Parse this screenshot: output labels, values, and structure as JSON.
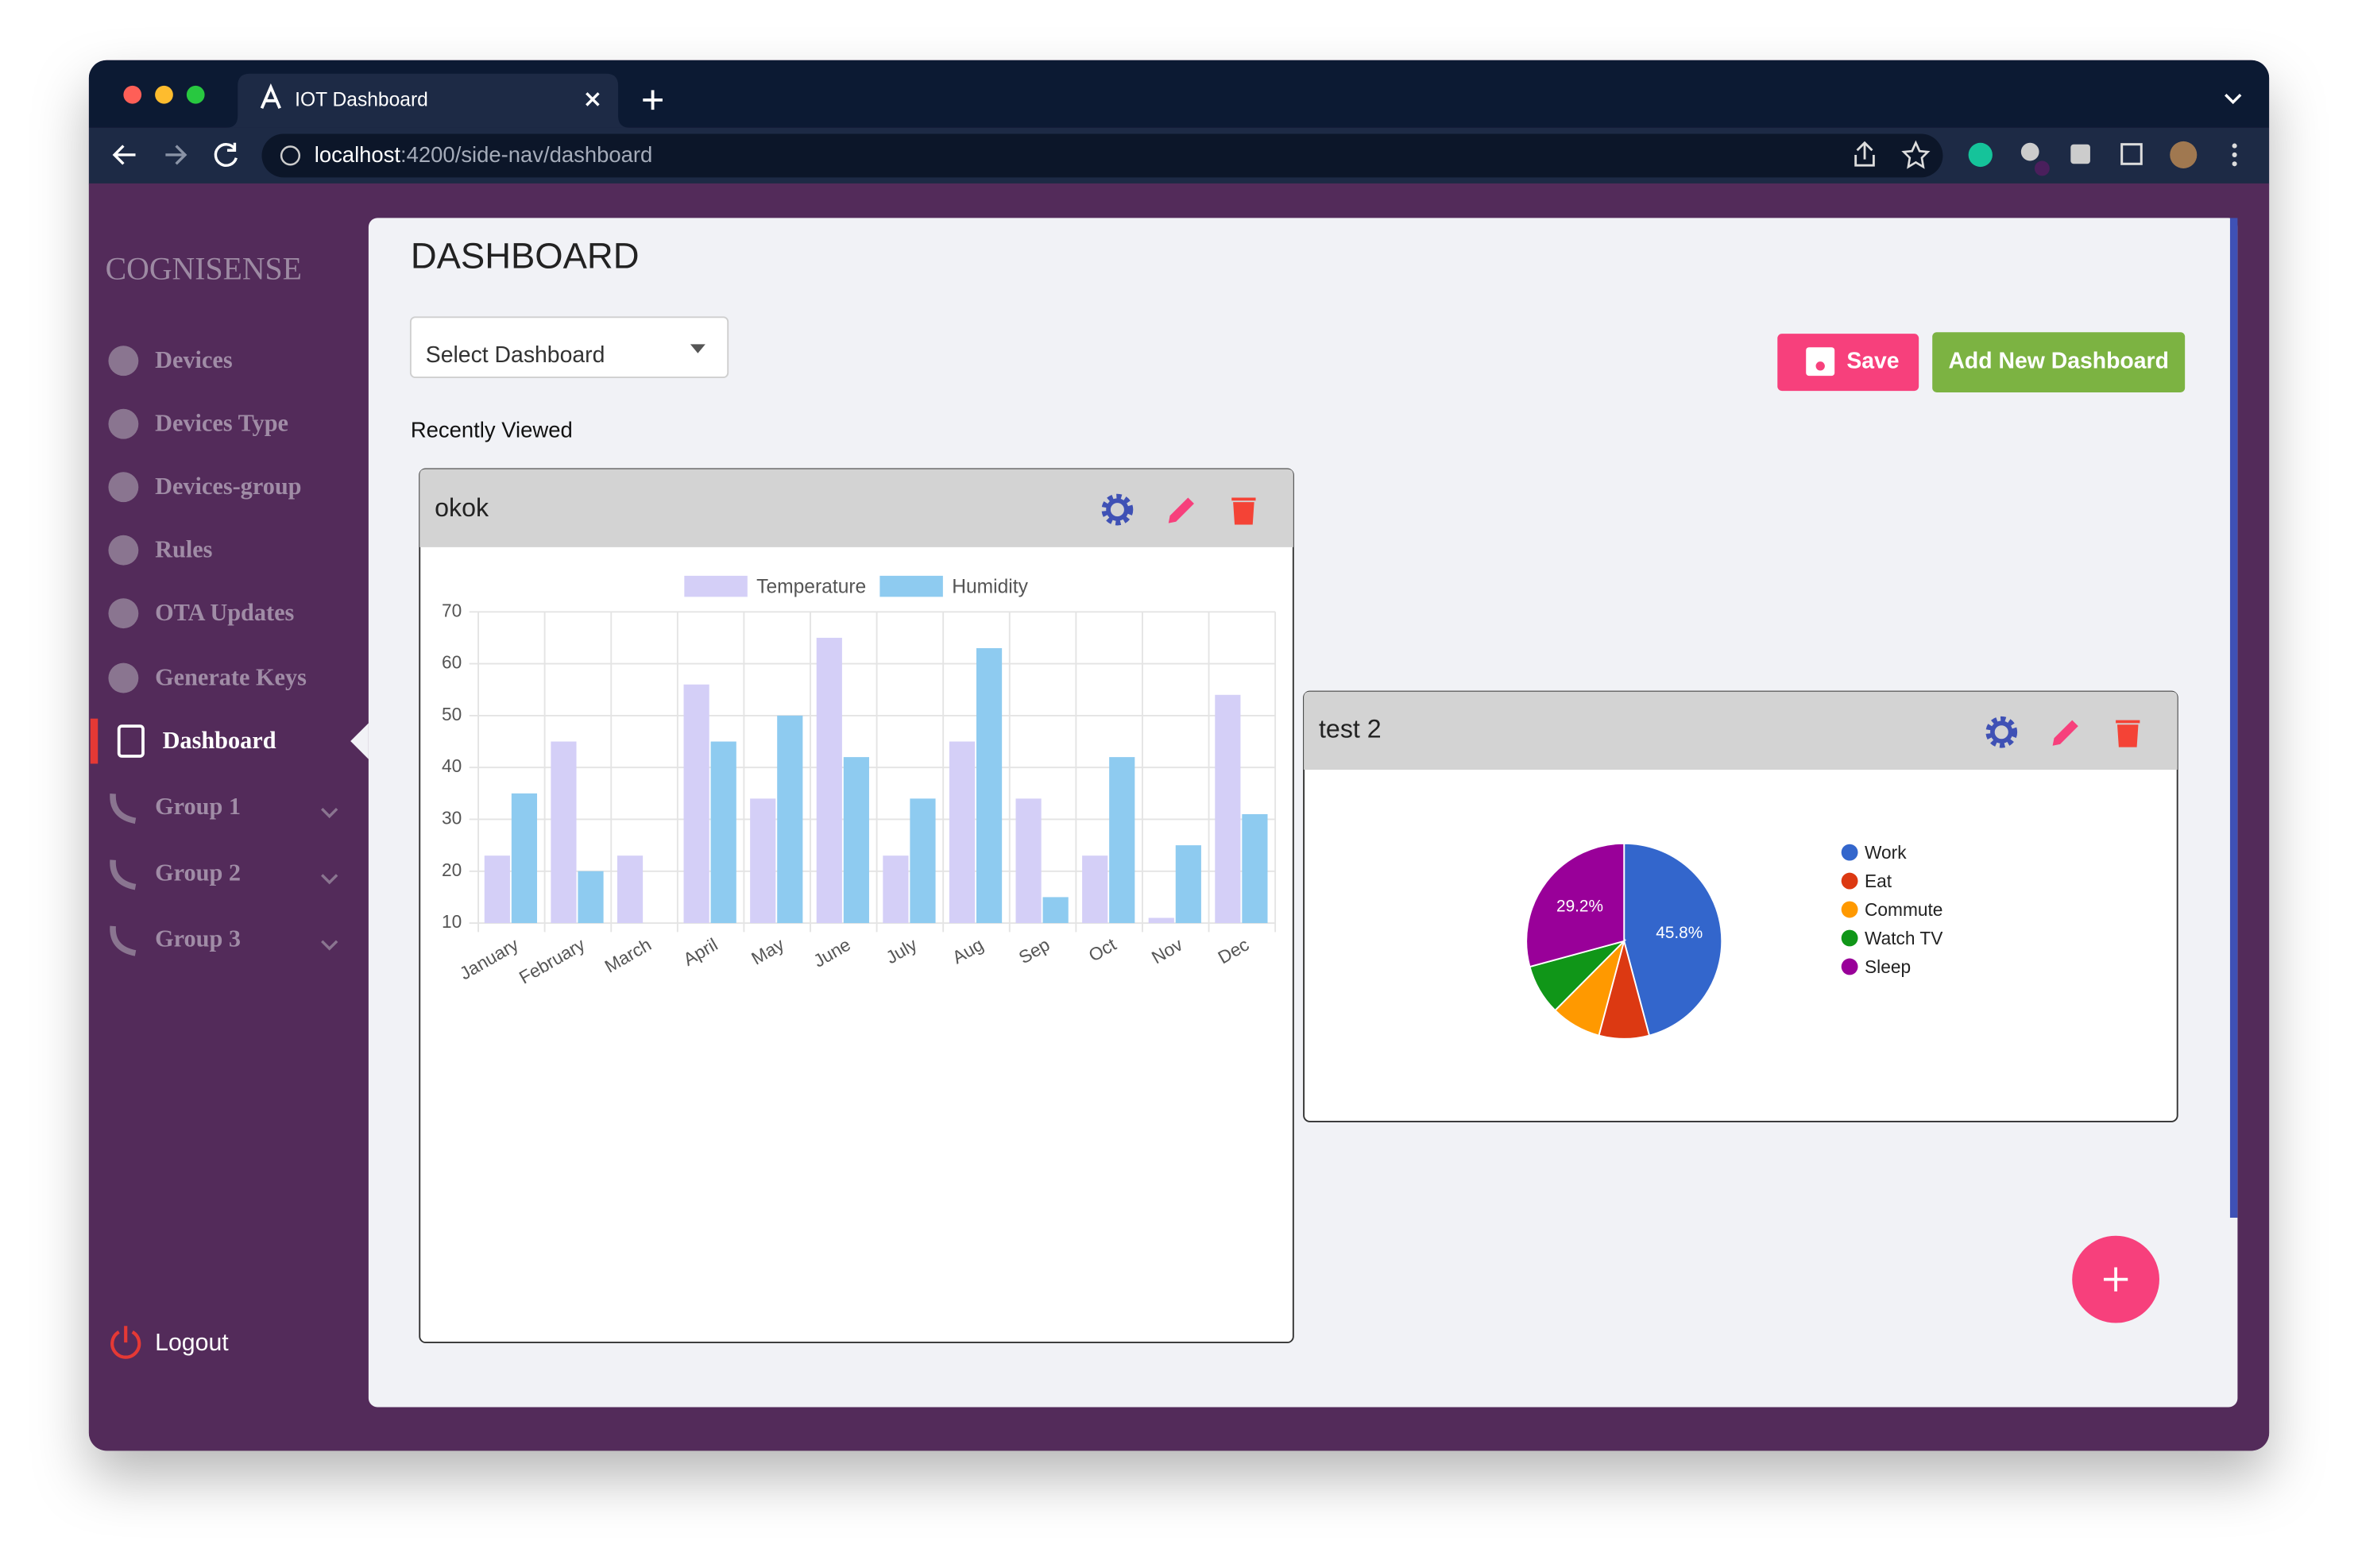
{
  "browser": {
    "tab_title": "IOT Dashboard",
    "address_bar": {
      "host": "localhost",
      "path": ":4200/side-nav/dashboard"
    }
  },
  "sidebar": {
    "brand": "COGNISENSE",
    "items": [
      "Devices",
      "Devices Type",
      "Devices-group",
      "Rules",
      "OTA Updates",
      "Generate Keys",
      "Dashboard",
      "Group 1",
      "Group 2",
      "Group 3"
    ],
    "logout": "Logout"
  },
  "page": {
    "title": "DASHBOARD",
    "select_placeholder": "Select Dashboard",
    "save_button": "Save",
    "add_button": "Add New Dashboard",
    "section_label": "Recently Viewed"
  },
  "widgets": [
    "okok",
    "test 2"
  ],
  "chart_data": [
    {
      "type": "bar",
      "categories": [
        "January",
        "February",
        "March",
        "April",
        "May",
        "June",
        "July",
        "Aug",
        "Sep",
        "Oct",
        "Nov",
        "Dec"
      ],
      "series": [
        {
          "name": "Temperature",
          "color": "#d4cff7",
          "values": [
            23,
            45,
            23,
            56,
            34,
            65,
            23,
            45,
            34,
            23,
            11,
            54
          ]
        },
        {
          "name": "Humidity",
          "color": "#8ecbf0",
          "values": [
            35,
            20,
            null,
            45,
            50,
            42,
            34,
            63,
            15,
            42,
            25,
            31
          ]
        }
      ],
      "ylim": [
        10,
        70
      ],
      "yticks": [
        10,
        20,
        30,
        40,
        50,
        60,
        70
      ],
      "grid": true,
      "legend": "top"
    },
    {
      "type": "pie",
      "categories": [
        "Work",
        "Eat",
        "Commute",
        "Watch TV",
        "Sleep"
      ],
      "values": [
        45.8,
        8.3,
        8.3,
        8.3,
        29.2
      ],
      "value_labels": [
        "45.8%",
        null,
        null,
        null,
        "29.2%"
      ],
      "colors": [
        "#3366cc",
        "#dc3912",
        "#ff9900",
        "#109618",
        "#990099"
      ],
      "legend": "right"
    }
  ]
}
